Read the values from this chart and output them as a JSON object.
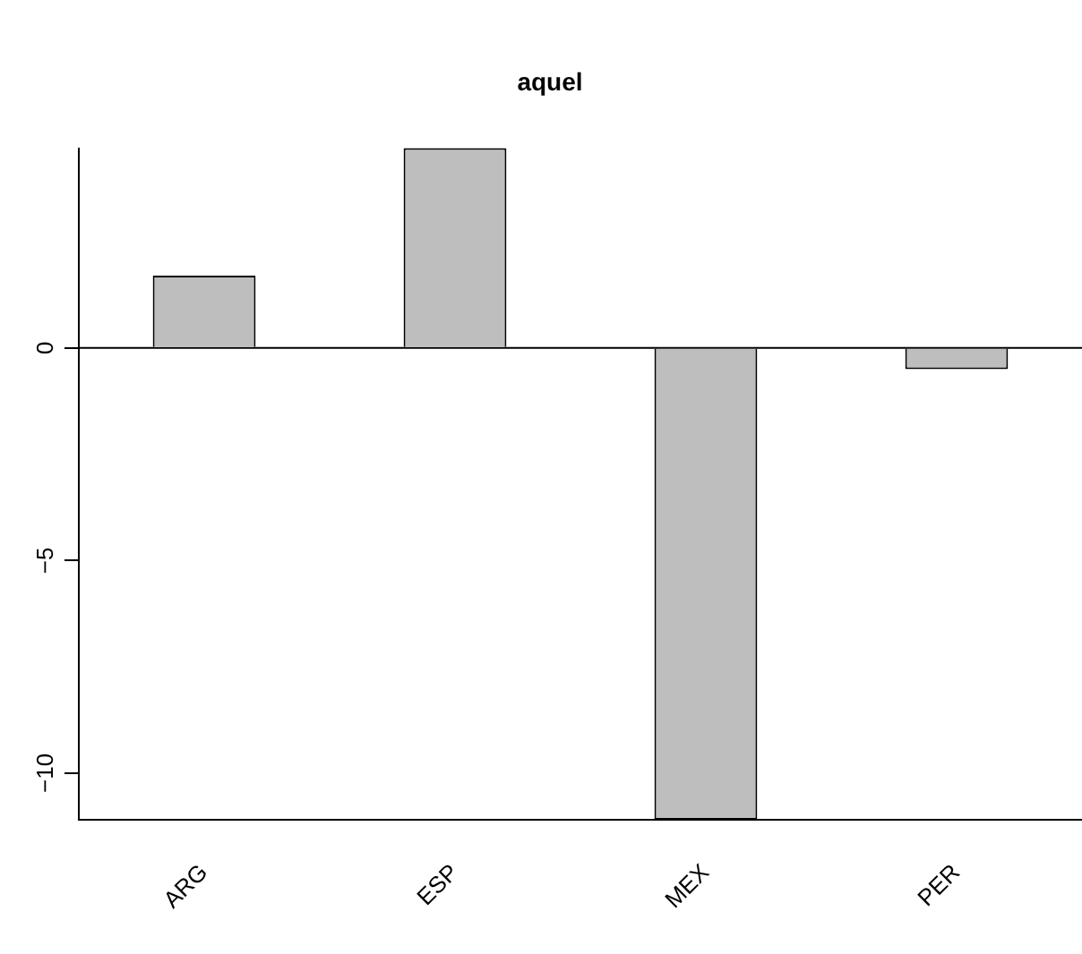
{
  "chart_data": {
    "type": "bar",
    "title": "aquel",
    "categories": [
      "ARG",
      "ESP",
      "MEX",
      "PER"
    ],
    "values": [
      1.7,
      4.7,
      -11.1,
      -0.5
    ],
    "color": "#bebebe",
    "ylim": [
      -11.1,
      4.7
    ],
    "yticks": [
      0,
      -5,
      -10
    ],
    "ref_lines": [
      {
        "axis": "y",
        "value": 0,
        "color": "#000000"
      }
    ],
    "grid": false,
    "legend": false
  }
}
